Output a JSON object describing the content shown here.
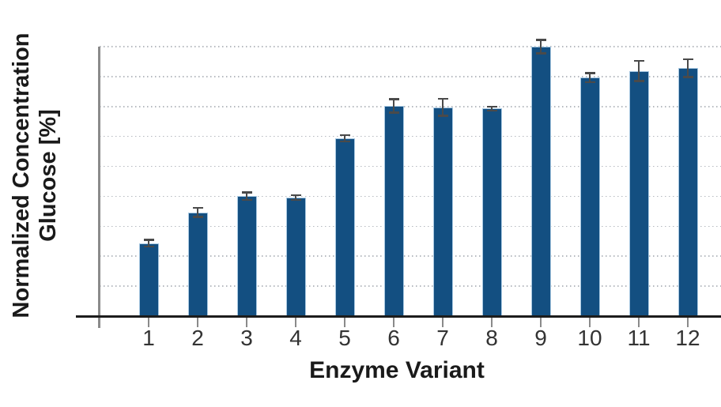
{
  "chart_data": {
    "type": "bar",
    "title": "",
    "xlabel": "Enzyme Variant",
    "ylabel_lines": [
      "Normalized Concentration",
      "Glucose [%]"
    ],
    "categories": [
      "1",
      "2",
      "3",
      "4",
      "5",
      "6",
      "7",
      "8",
      "9",
      "10",
      "11",
      "12"
    ],
    "values": [
      27,
      38.5,
      44.5,
      44,
      66,
      78,
      77.5,
      77,
      100,
      88.5,
      91,
      92
    ],
    "errors": [
      1.3,
      1.8,
      1.5,
      1.0,
      1.2,
      2.6,
      3.2,
      0.8,
      2.6,
      1.8,
      3.8,
      3.4
    ],
    "value_scale_note": "values in % normalized to variant 9 = 100; y axis shows no numeric tick labels",
    "ylim": [
      0,
      107
    ],
    "y_tick_labels": [],
    "gridlines": {
      "visible": true,
      "style": "dotted",
      "count": 9,
      "extend_full_width": true
    },
    "legend": "none",
    "error_bars": {
      "symmetric": true,
      "caps": true
    },
    "colors": {
      "bar": "#134f81",
      "bar_edge": "#a9c9e2",
      "error_bar": "#4a4a4a",
      "x_axis": "#1c1c1c",
      "y_axis": "#8a8a8a",
      "gridline": "#b5b9bf",
      "title_text": "#1a1a1a",
      "tick_text": "#333333",
      "background": "#ffffff"
    }
  }
}
